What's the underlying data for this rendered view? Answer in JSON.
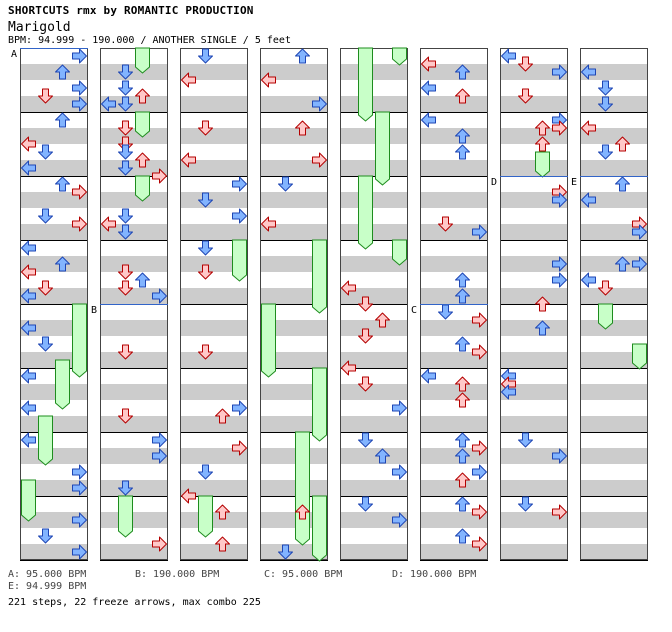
{
  "header": {
    "title": "SHORTCUTS rmx by ROMANTIC PRODUCTION",
    "song": "Marigold",
    "info": "BPM: 94.999 - 190.000 / ANOTHER SINGLE / 5 feet"
  },
  "colors": {
    "stripe": "#cccccc",
    "arrow_red_fill": "#ffc8c8",
    "arrow_red_stroke": "#b40000",
    "arrow_blue_fill": "#82b4ff",
    "arrow_blue_stroke": "#1e46b4",
    "freeze_fill": "#c8ffc8",
    "freeze_stroke": "#1e8c1e",
    "bpm_line": "#3264c8"
  },
  "chart_data": {
    "type": "step-chart",
    "columns": 8,
    "measures_per_column": 8,
    "lanes": [
      "left",
      "down",
      "up",
      "right"
    ],
    "bpm_markers": [
      {
        "label": "A",
        "column": 0,
        "beat": 0
      },
      {
        "label": "B",
        "column": 1,
        "beat": 16
      },
      {
        "label": "C",
        "column": 5,
        "beat": 16
      },
      {
        "label": "D",
        "column": 6,
        "beat": 8
      },
      {
        "label": "E",
        "column": 7,
        "beat": 8
      }
    ],
    "freezes": [
      {
        "column": 0,
        "lane": 3,
        "start": 16.0,
        "end": 20.5
      },
      {
        "column": 0,
        "lane": 2,
        "start": 19.5,
        "end": 22.5
      },
      {
        "column": 0,
        "lane": 1,
        "start": 23.0,
        "end": 26.0
      },
      {
        "column": 0,
        "lane": 0,
        "start": 27.0,
        "end": 29.5
      },
      {
        "column": 1,
        "lane": 2,
        "start": 0.0,
        "end": 1.5
      },
      {
        "column": 1,
        "lane": 2,
        "start": 4.0,
        "end": 5.5
      },
      {
        "column": 1,
        "lane": 2,
        "start": 8.0,
        "end": 9.5
      },
      {
        "column": 1,
        "lane": 1,
        "start": 28.0,
        "end": 30.5
      },
      {
        "column": 2,
        "lane": 3,
        "start": 12.0,
        "end": 14.5
      },
      {
        "column": 2,
        "lane": 1,
        "start": 28.0,
        "end": 30.5
      },
      {
        "column": 3,
        "lane": 3,
        "start": 12.0,
        "end": 16.5
      },
      {
        "column": 3,
        "lane": 0,
        "start": 16.0,
        "end": 20.5
      },
      {
        "column": 3,
        "lane": 3,
        "start": 20.0,
        "end": 24.5
      },
      {
        "column": 3,
        "lane": 2,
        "start": 24.0,
        "end": 31.0
      },
      {
        "column": 3,
        "lane": 3,
        "start": 28.0,
        "end": 32.0
      },
      {
        "column": 4,
        "lane": 3,
        "start": 0.0,
        "end": 1.0
      },
      {
        "column": 4,
        "lane": 1,
        "start": 0.0,
        "end": 4.5
      },
      {
        "column": 4,
        "lane": 2,
        "start": 4.0,
        "end": 8.5
      },
      {
        "column": 4,
        "lane": 1,
        "start": 8.0,
        "end": 12.5
      },
      {
        "column": 4,
        "lane": 3,
        "start": 12.0,
        "end": 13.5
      },
      {
        "column": 6,
        "lane": 2,
        "start": 6.5,
        "end": 8.0
      },
      {
        "column": 7,
        "lane": 1,
        "start": 16.0,
        "end": 17.5
      },
      {
        "column": 7,
        "lane": 3,
        "start": 18.5,
        "end": 20.0
      }
    ],
    "notes": [
      {
        "c": 0,
        "l": 3,
        "b": 0.5
      },
      {
        "c": 0,
        "l": 2,
        "b": 1.5
      },
      {
        "c": 0,
        "l": 1,
        "b": 3
      },
      {
        "c": 0,
        "l": 3,
        "b": 2.5
      },
      {
        "c": 0,
        "l": 3,
        "b": 3.5
      },
      {
        "c": 0,
        "l": 2,
        "b": 4.5
      },
      {
        "c": 0,
        "l": 0,
        "b": 6
      },
      {
        "c": 0,
        "l": 1,
        "b": 6.5
      },
      {
        "c": 0,
        "l": 0,
        "b": 7.5
      },
      {
        "c": 0,
        "l": 2,
        "b": 8.5
      },
      {
        "c": 0,
        "l": 3,
        "b": 9
      },
      {
        "c": 0,
        "l": 1,
        "b": 10.5
      },
      {
        "c": 0,
        "l": 3,
        "b": 11
      },
      {
        "c": 0,
        "l": 0,
        "b": 12.5
      },
      {
        "c": 0,
        "l": 2,
        "b": 13.5
      },
      {
        "c": 0,
        "l": 0,
        "b": 14
      },
      {
        "c": 0,
        "l": 1,
        "b": 15
      },
      {
        "c": 0,
        "l": 0,
        "b": 15.5
      },
      {
        "c": 0,
        "l": 0,
        "b": 17.5
      },
      {
        "c": 0,
        "l": 1,
        "b": 18.5
      },
      {
        "c": 0,
        "l": 0,
        "b": 20.5
      },
      {
        "c": 0,
        "l": 0,
        "b": 22.5
      },
      {
        "c": 0,
        "l": 0,
        "b": 24.5
      },
      {
        "c": 0,
        "l": 3,
        "b": 26.5
      },
      {
        "c": 0,
        "l": 3,
        "b": 27.5
      },
      {
        "c": 0,
        "l": 3,
        "b": 29.5
      },
      {
        "c": 0,
        "l": 1,
        "b": 30.5
      },
      {
        "c": 0,
        "l": 3,
        "b": 31.5
      },
      {
        "c": 1,
        "l": 1,
        "b": 1.5
      },
      {
        "c": 1,
        "l": 1,
        "b": 2.5
      },
      {
        "c": 1,
        "l": 2,
        "b": 3
      },
      {
        "c": 1,
        "l": 0,
        "b": 3.5
      },
      {
        "c": 1,
        "l": 1,
        "b": 3.5
      },
      {
        "c": 1,
        "l": 1,
        "b": 5
      },
      {
        "c": 1,
        "l": 1,
        "b": 6
      },
      {
        "c": 1,
        "l": 2,
        "b": 7
      },
      {
        "c": 1,
        "l": 1,
        "b": 6.5
      },
      {
        "c": 1,
        "l": 1,
        "b": 7.5
      },
      {
        "c": 1,
        "l": 3,
        "b": 8
      },
      {
        "c": 1,
        "l": 1,
        "b": 10.5
      },
      {
        "c": 1,
        "l": 0,
        "b": 11
      },
      {
        "c": 1,
        "l": 1,
        "b": 11.5
      },
      {
        "c": 1,
        "l": 1,
        "b": 14
      },
      {
        "c": 1,
        "l": 2,
        "b": 14.5
      },
      {
        "c": 1,
        "l": 1,
        "b": 15
      },
      {
        "c": 1,
        "l": 3,
        "b": 15.5
      },
      {
        "c": 1,
        "l": 1,
        "b": 19
      },
      {
        "c": 1,
        "l": 1,
        "b": 23
      },
      {
        "c": 1,
        "l": 3,
        "b": 24.5
      },
      {
        "c": 1,
        "l": 3,
        "b": 25.5
      },
      {
        "c": 1,
        "l": 1,
        "b": 27.5
      },
      {
        "c": 1,
        "l": 3,
        "b": 31
      },
      {
        "c": 2,
        "l": 1,
        "b": 0.5
      },
      {
        "c": 2,
        "l": 0,
        "b": 2
      },
      {
        "c": 2,
        "l": 1,
        "b": 5
      },
      {
        "c": 2,
        "l": 0,
        "b": 7
      },
      {
        "c": 2,
        "l": 3,
        "b": 8.5
      },
      {
        "c": 2,
        "l": 1,
        "b": 9.5
      },
      {
        "c": 2,
        "l": 3,
        "b": 10.5
      },
      {
        "c": 2,
        "l": 1,
        "b": 12.5
      },
      {
        "c": 2,
        "l": 1,
        "b": 14
      },
      {
        "c": 2,
        "l": 1,
        "b": 19
      },
      {
        "c": 2,
        "l": 3,
        "b": 22.5
      },
      {
        "c": 2,
        "l": 2,
        "b": 23
      },
      {
        "c": 2,
        "l": 3,
        "b": 25
      },
      {
        "c": 2,
        "l": 1,
        "b": 26.5
      },
      {
        "c": 2,
        "l": 0,
        "b": 28
      },
      {
        "c": 2,
        "l": 2,
        "b": 29
      },
      {
        "c": 2,
        "l": 2,
        "b": 31
      },
      {
        "c": 3,
        "l": 2,
        "b": 0.5
      },
      {
        "c": 3,
        "l": 0,
        "b": 2
      },
      {
        "c": 3,
        "l": 3,
        "b": 3.5
      },
      {
        "c": 3,
        "l": 2,
        "b": 5
      },
      {
        "c": 3,
        "l": 3,
        "b": 7
      },
      {
        "c": 3,
        "l": 1,
        "b": 8.5
      },
      {
        "c": 3,
        "l": 0,
        "b": 11
      },
      {
        "c": 3,
        "l": 2,
        "b": 29
      },
      {
        "c": 3,
        "l": 1,
        "b": 31.5
      },
      {
        "c": 4,
        "l": 0,
        "b": 15
      },
      {
        "c": 4,
        "l": 1,
        "b": 16
      },
      {
        "c": 4,
        "l": 2,
        "b": 17
      },
      {
        "c": 4,
        "l": 1,
        "b": 18
      },
      {
        "c": 4,
        "l": 0,
        "b": 20
      },
      {
        "c": 4,
        "l": 1,
        "b": 21
      },
      {
        "c": 4,
        "l": 3,
        "b": 22.5
      },
      {
        "c": 4,
        "l": 1,
        "b": 24.5
      },
      {
        "c": 4,
        "l": 2,
        "b": 25.5
      },
      {
        "c": 4,
        "l": 3,
        "b": 26.5
      },
      {
        "c": 4,
        "l": 1,
        "b": 28.5
      },
      {
        "c": 4,
        "l": 3,
        "b": 29.5
      },
      {
        "c": 5,
        "l": 0,
        "b": 1
      },
      {
        "c": 5,
        "l": 2,
        "b": 1.5
      },
      {
        "c": 5,
        "l": 0,
        "b": 2.5
      },
      {
        "c": 5,
        "l": 2,
        "b": 3
      },
      {
        "c": 5,
        "l": 0,
        "b": 4.5
      },
      {
        "c": 5,
        "l": 2,
        "b": 5.5
      },
      {
        "c": 5,
        "l": 2,
        "b": 6.5
      },
      {
        "c": 5,
        "l": 1,
        "b": 11
      },
      {
        "c": 5,
        "l": 3,
        "b": 11.5
      },
      {
        "c": 5,
        "l": 2,
        "b": 14.5
      },
      {
        "c": 5,
        "l": 2,
        "b": 15.5
      },
      {
        "c": 5,
        "l": 1,
        "b": 16.5
      },
      {
        "c": 5,
        "l": 3,
        "b": 17
      },
      {
        "c": 5,
        "l": 2,
        "b": 18.5
      },
      {
        "c": 5,
        "l": 3,
        "b": 19
      },
      {
        "c": 5,
        "l": 0,
        "b": 20.5
      },
      {
        "c": 5,
        "l": 2,
        "b": 21
      },
      {
        "c": 5,
        "l": 2,
        "b": 22
      },
      {
        "c": 5,
        "l": 2,
        "b": 24.5
      },
      {
        "c": 5,
        "l": 3,
        "b": 25
      },
      {
        "c": 5,
        "l": 2,
        "b": 25.5
      },
      {
        "c": 5,
        "l": 3,
        "b": 26.5
      },
      {
        "c": 5,
        "l": 2,
        "b": 27
      },
      {
        "c": 5,
        "l": 2,
        "b": 28.5
      },
      {
        "c": 5,
        "l": 3,
        "b": 29
      },
      {
        "c": 5,
        "l": 2,
        "b": 30.5
      },
      {
        "c": 5,
        "l": 3,
        "b": 31
      },
      {
        "c": 6,
        "l": 0,
        "b": 0.5
      },
      {
        "c": 6,
        "l": 1,
        "b": 1
      },
      {
        "c": 6,
        "l": 3,
        "b": 1.5
      },
      {
        "c": 6,
        "l": 1,
        "b": 3
      },
      {
        "c": 6,
        "l": 3,
        "b": 4.5
      },
      {
        "c": 6,
        "l": 2,
        "b": 5
      },
      {
        "c": 6,
        "l": 3,
        "b": 5
      },
      {
        "c": 6,
        "l": 2,
        "b": 6
      },
      {
        "c": 6,
        "l": 3,
        "b": 9
      },
      {
        "c": 6,
        "l": 3,
        "b": 9.5
      },
      {
        "c": 6,
        "l": 3,
        "b": 13.5
      },
      {
        "c": 6,
        "l": 3,
        "b": 14.5
      },
      {
        "c": 6,
        "l": 2,
        "b": 16
      },
      {
        "c": 6,
        "l": 2,
        "b": 17.5
      },
      {
        "c": 6,
        "l": 0,
        "b": 20.5
      },
      {
        "c": 6,
        "l": 0,
        "b": 21
      },
      {
        "c": 6,
        "l": 0,
        "b": 21.5
      },
      {
        "c": 6,
        "l": 1,
        "b": 24.5
      },
      {
        "c": 6,
        "l": 3,
        "b": 25.5
      },
      {
        "c": 6,
        "l": 1,
        "b": 28.5
      },
      {
        "c": 6,
        "l": 3,
        "b": 29
      },
      {
        "c": 7,
        "l": 0,
        "b": 1.5
      },
      {
        "c": 7,
        "l": 1,
        "b": 2.5
      },
      {
        "c": 7,
        "l": 1,
        "b": 3.5
      },
      {
        "c": 7,
        "l": 0,
        "b": 5
      },
      {
        "c": 7,
        "l": 1,
        "b": 6.5
      },
      {
        "c": 7,
        "l": 2,
        "b": 6
      },
      {
        "c": 7,
        "l": 2,
        "b": 8.5
      },
      {
        "c": 7,
        "l": 0,
        "b": 9.5
      },
      {
        "c": 7,
        "l": 3,
        "b": 11
      },
      {
        "c": 7,
        "l": 3,
        "b": 11.5
      },
      {
        "c": 7,
        "l": 2,
        "b": 13.5
      },
      {
        "c": 7,
        "l": 3,
        "b": 13.5
      },
      {
        "c": 7,
        "l": 0,
        "b": 14.5
      },
      {
        "c": 7,
        "l": 1,
        "b": 15
      }
    ]
  },
  "legend": {
    "a": "A: 95.000 BPM",
    "b": "B: 190.000 BPM",
    "c": "C: 95.000 BPM",
    "d": "D: 190.000 BPM",
    "e": "E: 94.999 BPM"
  },
  "summary": "221 steps, 22 freeze arrows, max combo 225"
}
